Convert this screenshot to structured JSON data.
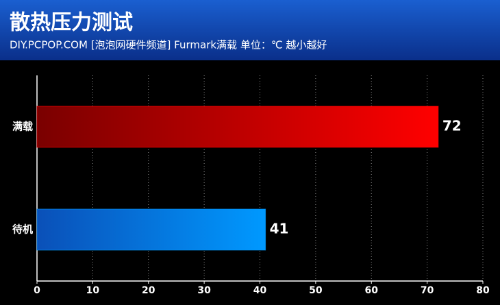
{
  "chart_data": {
    "type": "hbar",
    "title": "散热压力测试",
    "subtitle": "DIY.PCPOP.COM [泡泡网硬件频道]  Furmark满载 单位：℃  越小越好",
    "categories": [
      "满载",
      "待机"
    ],
    "values": [
      72,
      41
    ],
    "colors": [
      [
        "#7a0000",
        "#ff0000"
      ],
      [
        "#0a50b8",
        "#0099ff"
      ]
    ],
    "xlim": [
      0,
      80
    ],
    "xticks": [
      0,
      10,
      20,
      30,
      40,
      50,
      60,
      70,
      80
    ],
    "grid": true
  }
}
